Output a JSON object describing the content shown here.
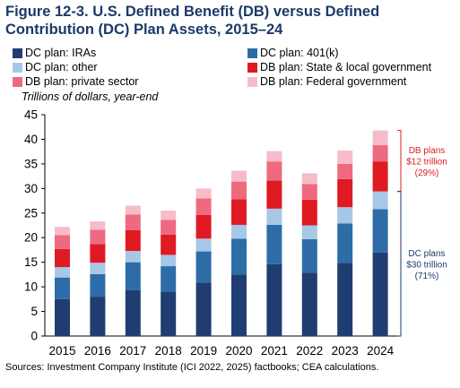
{
  "title": "Figure 12-3. U.S. Defined Benefit (DB) versus Defined Contribution (DC) Plan Assets, 2015–24",
  "source": "Sources: Investment Company Institute (ICI 2022, 2025) factbooks; CEA calculations.",
  "chart_data": {
    "type": "bar",
    "stacked": true,
    "title": "Figure 12-3. U.S. Defined Benefit (DB) versus Defined Contribution (DC) Plan Assets, 2015–24",
    "ylabel": "Trillions of dollars, year-end",
    "xlabel": "",
    "ylim": [
      0,
      45
    ],
    "yticks": [
      0,
      5,
      10,
      15,
      20,
      25,
      30,
      35,
      40,
      45
    ],
    "grid": false,
    "legend_position": "top",
    "categories": [
      "2015",
      "2016",
      "2017",
      "2018",
      "2019",
      "2020",
      "2021",
      "2022",
      "2023",
      "2024"
    ],
    "series": [
      {
        "name": "DC plan: IRAs",
        "color": "#1f3d70",
        "values": [
          7.5,
          8.0,
          9.3,
          9.0,
          10.9,
          12.5,
          14.6,
          12.9,
          14.9,
          17.0
        ]
      },
      {
        "name": "DC plan: 401(k)",
        "color": "#2e6ca8",
        "values": [
          4.4,
          4.6,
          5.7,
          5.2,
          6.3,
          7.3,
          8.0,
          6.8,
          8.0,
          8.8
        ]
      },
      {
        "name": "DC plan: other",
        "color": "#a7c7e6",
        "values": [
          2.1,
          2.3,
          2.3,
          2.3,
          2.6,
          2.8,
          3.3,
          2.8,
          3.3,
          3.6
        ]
      },
      {
        "name": "DB plan: State & local government",
        "color": "#e01a22",
        "values": [
          3.7,
          3.8,
          4.2,
          4.1,
          4.8,
          5.2,
          5.7,
          5.2,
          5.7,
          6.1
        ]
      },
      {
        "name": "DB plan: private sector",
        "color": "#ee6a80",
        "values": [
          2.8,
          2.9,
          3.2,
          3.0,
          3.4,
          3.6,
          3.9,
          3.2,
          3.1,
          3.3
        ]
      },
      {
        "name": "DB plan: Federal government",
        "color": "#f6bcc9",
        "values": [
          1.7,
          1.7,
          1.8,
          1.9,
          2.0,
          2.2,
          2.1,
          2.2,
          2.7,
          3.0
        ]
      }
    ],
    "annotations": [
      {
        "group": "DB plans",
        "lines": [
          "DB plans",
          "$12 trillion",
          "(29%)"
        ],
        "color": "#e01a22"
      },
      {
        "group": "DC plans",
        "lines": [
          "DC plans",
          "$30 trillion",
          "(71%)"
        ],
        "color": "#1b3a68"
      }
    ]
  }
}
